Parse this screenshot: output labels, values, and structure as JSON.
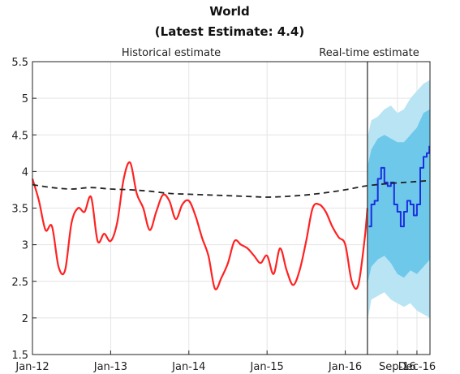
{
  "chart_data": {
    "type": "line",
    "title": "World",
    "subtitle": "(Latest Estimate: 4.4)",
    "region_labels": {
      "historical": "Historical estimate",
      "realtime": "Real-time estimate"
    },
    "xlabel": "",
    "ylabel": "",
    "x_ticks": [
      "Jan-12",
      "Jan-13",
      "Jan-14",
      "Jan-15",
      "Jan-16",
      "Sep-16",
      "Dec-16"
    ],
    "x_tick_month_index": [
      0,
      12,
      24,
      36,
      48,
      56,
      59
    ],
    "x_range_month_index": [
      0,
      61
    ],
    "divider_month_index": 51.4,
    "y_ticks": [
      "1.5",
      "2",
      "2.5",
      "3",
      "3.5",
      "4",
      "4.5",
      "5",
      "5.5"
    ],
    "ylim": [
      1.5,
      5.5
    ],
    "grid": true,
    "colors": {
      "historical": "#ff2222",
      "realtime": "#1a2ee0",
      "trend": "#222222",
      "band_outer": "#b8e4f4",
      "band_inner": "#6ec8ea",
      "divider": "#333333",
      "grid": "#e4e4e4"
    },
    "series": [
      {
        "key": "historical",
        "x": [
          0,
          1,
          2,
          3,
          4,
          5,
          6,
          7,
          8,
          9,
          10,
          11,
          12,
          13,
          14,
          15,
          16,
          17,
          18,
          19,
          20,
          21,
          22,
          23,
          24,
          25,
          26,
          27,
          28,
          29,
          30,
          31,
          32,
          33,
          34,
          35,
          36,
          37,
          38,
          39,
          40,
          41,
          42,
          43,
          44,
          45,
          46,
          47,
          48,
          49,
          50,
          51,
          51.4
        ],
        "values": [
          3.9,
          3.6,
          3.2,
          3.25,
          2.7,
          2.65,
          3.3,
          3.5,
          3.45,
          3.65,
          3.05,
          3.15,
          3.05,
          3.3,
          3.9,
          4.12,
          3.7,
          3.5,
          3.2,
          3.45,
          3.68,
          3.6,
          3.35,
          3.55,
          3.6,
          3.4,
          3.1,
          2.85,
          2.4,
          2.55,
          2.75,
          3.05,
          3.0,
          2.95,
          2.85,
          2.75,
          2.85,
          2.6,
          2.95,
          2.65,
          2.45,
          2.65,
          3.05,
          3.5,
          3.55,
          3.45,
          3.25,
          3.1,
          3.0,
          2.5,
          2.45,
          3.1,
          3.5
        ]
      },
      {
        "key": "realtime",
        "x": [
          51.6,
          52,
          52.5,
          53,
          53.5,
          54,
          54.5,
          55,
          55.5,
          56,
          56.5,
          57,
          57.5,
          58,
          58.5,
          59,
          59.5,
          60,
          60.5,
          60.9
        ],
        "values": [
          3.25,
          3.55,
          3.6,
          3.9,
          4.05,
          3.85,
          3.8,
          3.85,
          3.55,
          3.45,
          3.25,
          3.45,
          3.6,
          3.55,
          3.4,
          3.55,
          4.05,
          4.2,
          4.25,
          4.35
        ]
      },
      {
        "key": "trend",
        "x": [
          0,
          3,
          6,
          9,
          12,
          15,
          18,
          21,
          24,
          27,
          30,
          33,
          36,
          39,
          42,
          45,
          48,
          51,
          54,
          57,
          60,
          61
        ],
        "values": [
          3.82,
          3.78,
          3.76,
          3.78,
          3.76,
          3.75,
          3.73,
          3.7,
          3.69,
          3.68,
          3.67,
          3.66,
          3.65,
          3.66,
          3.68,
          3.71,
          3.75,
          3.8,
          3.83,
          3.85,
          3.87,
          3.88
        ]
      }
    ],
    "band_outer": {
      "x": [
        51.5,
        52,
        53,
        54,
        55,
        56,
        57,
        58,
        59,
        60,
        61
      ],
      "upper": [
        4.5,
        4.7,
        4.75,
        4.85,
        4.9,
        4.8,
        4.85,
        5.0,
        5.1,
        5.2,
        5.25
      ],
      "lower": [
        2.0,
        2.25,
        2.3,
        2.35,
        2.25,
        2.2,
        2.15,
        2.2,
        2.1,
        2.05,
        2.0
      ]
    },
    "band_inner": {
      "x": [
        51.5,
        52,
        53,
        54,
        55,
        56,
        57,
        58,
        59,
        60,
        61
      ],
      "upper": [
        4.1,
        4.3,
        4.45,
        4.5,
        4.45,
        4.4,
        4.4,
        4.5,
        4.6,
        4.8,
        4.85
      ],
      "lower": [
        2.5,
        2.7,
        2.8,
        2.85,
        2.75,
        2.6,
        2.55,
        2.65,
        2.6,
        2.7,
        2.8
      ]
    }
  }
}
